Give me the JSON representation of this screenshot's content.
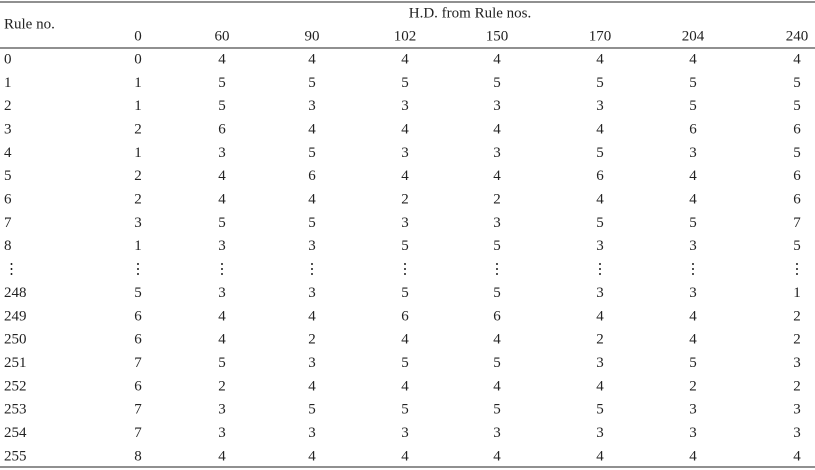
{
  "header": {
    "rule_no": "Rule no.",
    "group": "H.D. from Rule nos.",
    "columns": [
      "0",
      "60",
      "90",
      "102",
      "150",
      "170",
      "204",
      "240"
    ]
  },
  "rows": [
    [
      "0",
      "0",
      "4",
      "4",
      "4",
      "4",
      "4",
      "4",
      "4"
    ],
    [
      "1",
      "1",
      "5",
      "5",
      "5",
      "5",
      "5",
      "5",
      "5"
    ],
    [
      "2",
      "1",
      "5",
      "3",
      "3",
      "3",
      "3",
      "5",
      "5"
    ],
    [
      "3",
      "2",
      "6",
      "4",
      "4",
      "4",
      "4",
      "6",
      "6"
    ],
    [
      "4",
      "1",
      "3",
      "5",
      "3",
      "3",
      "5",
      "3",
      "5"
    ],
    [
      "5",
      "2",
      "4",
      "6",
      "4",
      "4",
      "6",
      "4",
      "6"
    ],
    [
      "6",
      "2",
      "4",
      "4",
      "2",
      "2",
      "4",
      "4",
      "6"
    ],
    [
      "7",
      "3",
      "5",
      "5",
      "3",
      "3",
      "5",
      "5",
      "7"
    ],
    [
      "8",
      "1",
      "3",
      "3",
      "5",
      "5",
      "3",
      "3",
      "5"
    ],
    [
      "⋮",
      "⋮",
      "⋮",
      "⋮",
      "⋮",
      "⋮",
      "⋮",
      "⋮",
      "⋮"
    ],
    [
      "248",
      "5",
      "3",
      "3",
      "5",
      "5",
      "3",
      "3",
      "1"
    ],
    [
      "249",
      "6",
      "4",
      "4",
      "6",
      "6",
      "4",
      "4",
      "2"
    ],
    [
      "250",
      "6",
      "4",
      "2",
      "4",
      "4",
      "2",
      "4",
      "2"
    ],
    [
      "251",
      "7",
      "5",
      "3",
      "5",
      "5",
      "3",
      "5",
      "3"
    ],
    [
      "252",
      "6",
      "2",
      "4",
      "4",
      "4",
      "4",
      "2",
      "2"
    ],
    [
      "253",
      "7",
      "3",
      "5",
      "5",
      "5",
      "5",
      "3",
      "3"
    ],
    [
      "254",
      "7",
      "3",
      "3",
      "3",
      "3",
      "3",
      "3",
      "3"
    ],
    [
      "255",
      "8",
      "4",
      "4",
      "4",
      "4",
      "4",
      "4",
      "4"
    ]
  ]
}
